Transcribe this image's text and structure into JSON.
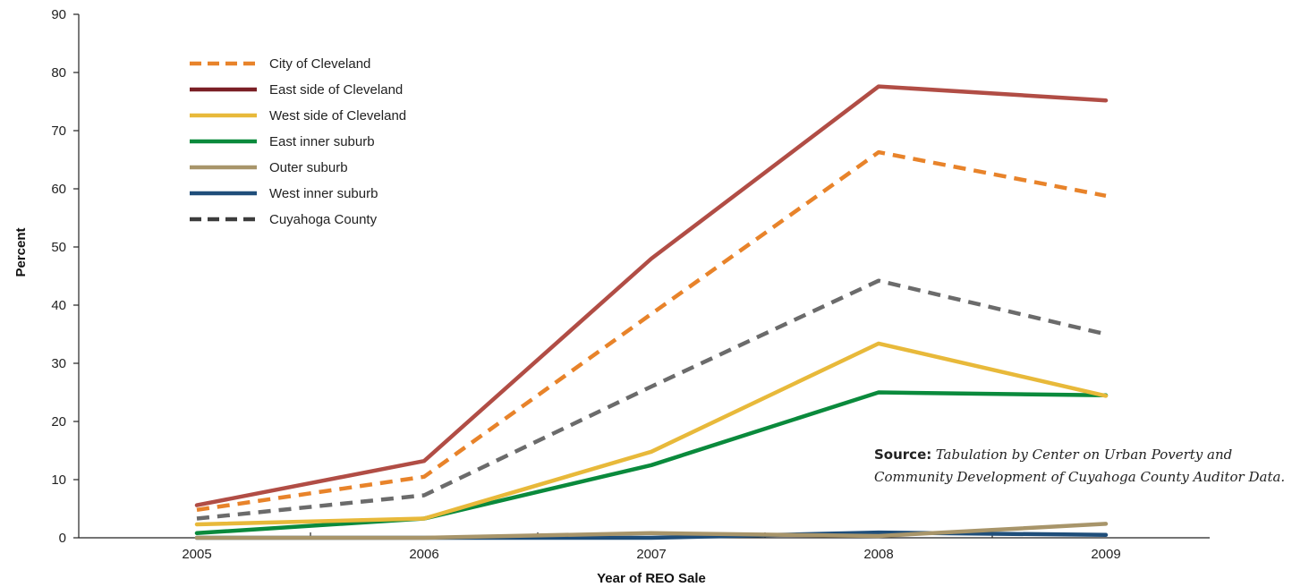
{
  "chart_data": {
    "type": "line",
    "x": [
      2005,
      2006,
      2007,
      2008,
      2009
    ],
    "xlabel": "Year of REO Sale",
    "ylabel": "Percent",
    "ylim": [
      0,
      90
    ],
    "yticks": [
      0,
      10,
      20,
      30,
      40,
      50,
      60,
      70,
      80,
      90
    ],
    "xtick_labels": [
      "2005",
      "2006",
      "2007",
      "2008",
      "2009"
    ],
    "grid": false,
    "legend_position": "top-left",
    "series": [
      {
        "name": "City of Cleveland",
        "color": "#e8832a",
        "dash": "dashed",
        "values": [
          4.8,
          10.5,
          38.5,
          66.3,
          58.8
        ]
      },
      {
        "name": "East side of Cleveland",
        "color": "#b14d45",
        "dash": "solid",
        "values": [
          5.6,
          13.2,
          48.0,
          77.6,
          75.2
        ]
      },
      {
        "name": "West side of Cleveland",
        "color": "#e8b93a",
        "dash": "solid",
        "values": [
          2.3,
          3.3,
          14.8,
          33.4,
          24.4
        ]
      },
      {
        "name": "East inner suburb",
        "color": "#0a8a3c",
        "dash": "solid",
        "values": [
          0.8,
          3.3,
          12.5,
          25.0,
          24.5
        ]
      },
      {
        "name": "Outer suburb",
        "color": "#a8956a",
        "dash": "solid",
        "values": [
          0.0,
          0.0,
          0.8,
          0.3,
          2.4
        ]
      },
      {
        "name": "West inner suburb",
        "color": "#1f4e7a",
        "dash": "solid",
        "values": [
          0.0,
          0.0,
          0.0,
          0.9,
          0.5
        ]
      },
      {
        "name": "Cuyahoga County",
        "color": "#6b6b6b",
        "dash": "dashed",
        "values": [
          3.3,
          7.3,
          26.0,
          44.2,
          35.0
        ]
      }
    ],
    "legend_swatch_colors": [
      "#e8832a",
      "#7a1f25",
      "#e8b93a",
      "#0a8a3c",
      "#a8956a",
      "#1f4e7a",
      "#3c3c3c"
    ]
  },
  "source_note": {
    "label": "Source:",
    "text": "Tabulation by Center on Urban Poverty and Community Development of Cuyahoga County Auditor Data."
  }
}
